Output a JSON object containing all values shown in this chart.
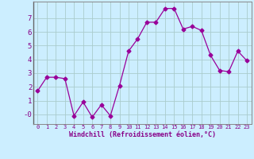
{
  "x": [
    0,
    1,
    2,
    3,
    4,
    5,
    6,
    7,
    8,
    9,
    10,
    11,
    12,
    13,
    14,
    15,
    16,
    17,
    18,
    19,
    20,
    21,
    22,
    23
  ],
  "y": [
    1.7,
    2.7,
    2.7,
    2.6,
    -0.1,
    0.9,
    -0.2,
    0.7,
    -0.1,
    2.1,
    4.6,
    5.5,
    6.7,
    6.7,
    7.7,
    7.7,
    6.2,
    6.4,
    6.1,
    4.3,
    3.2,
    3.1,
    4.6,
    3.9
  ],
  "line_color": "#990099",
  "marker": "D",
  "marker_size": 2.5,
  "bg_color": "#cceeff",
  "grid_color": "#aacccc",
  "xlabel": "Windchill (Refroidissement éolien,°C)",
  "xlabel_color": "#880088",
  "tick_color": "#880088",
  "ylim": [
    -0.7,
    8.2
  ],
  "xlim": [
    -0.5,
    23.5
  ],
  "yticks": [
    0,
    1,
    2,
    3,
    4,
    5,
    6,
    7
  ],
  "ytick_labels": [
    "-0",
    "1",
    "2",
    "3",
    "4",
    "5",
    "6",
    "7"
  ],
  "xticks": [
    0,
    1,
    2,
    3,
    4,
    5,
    6,
    7,
    8,
    9,
    10,
    11,
    12,
    13,
    14,
    15,
    16,
    17,
    18,
    19,
    20,
    21,
    22,
    23
  ]
}
